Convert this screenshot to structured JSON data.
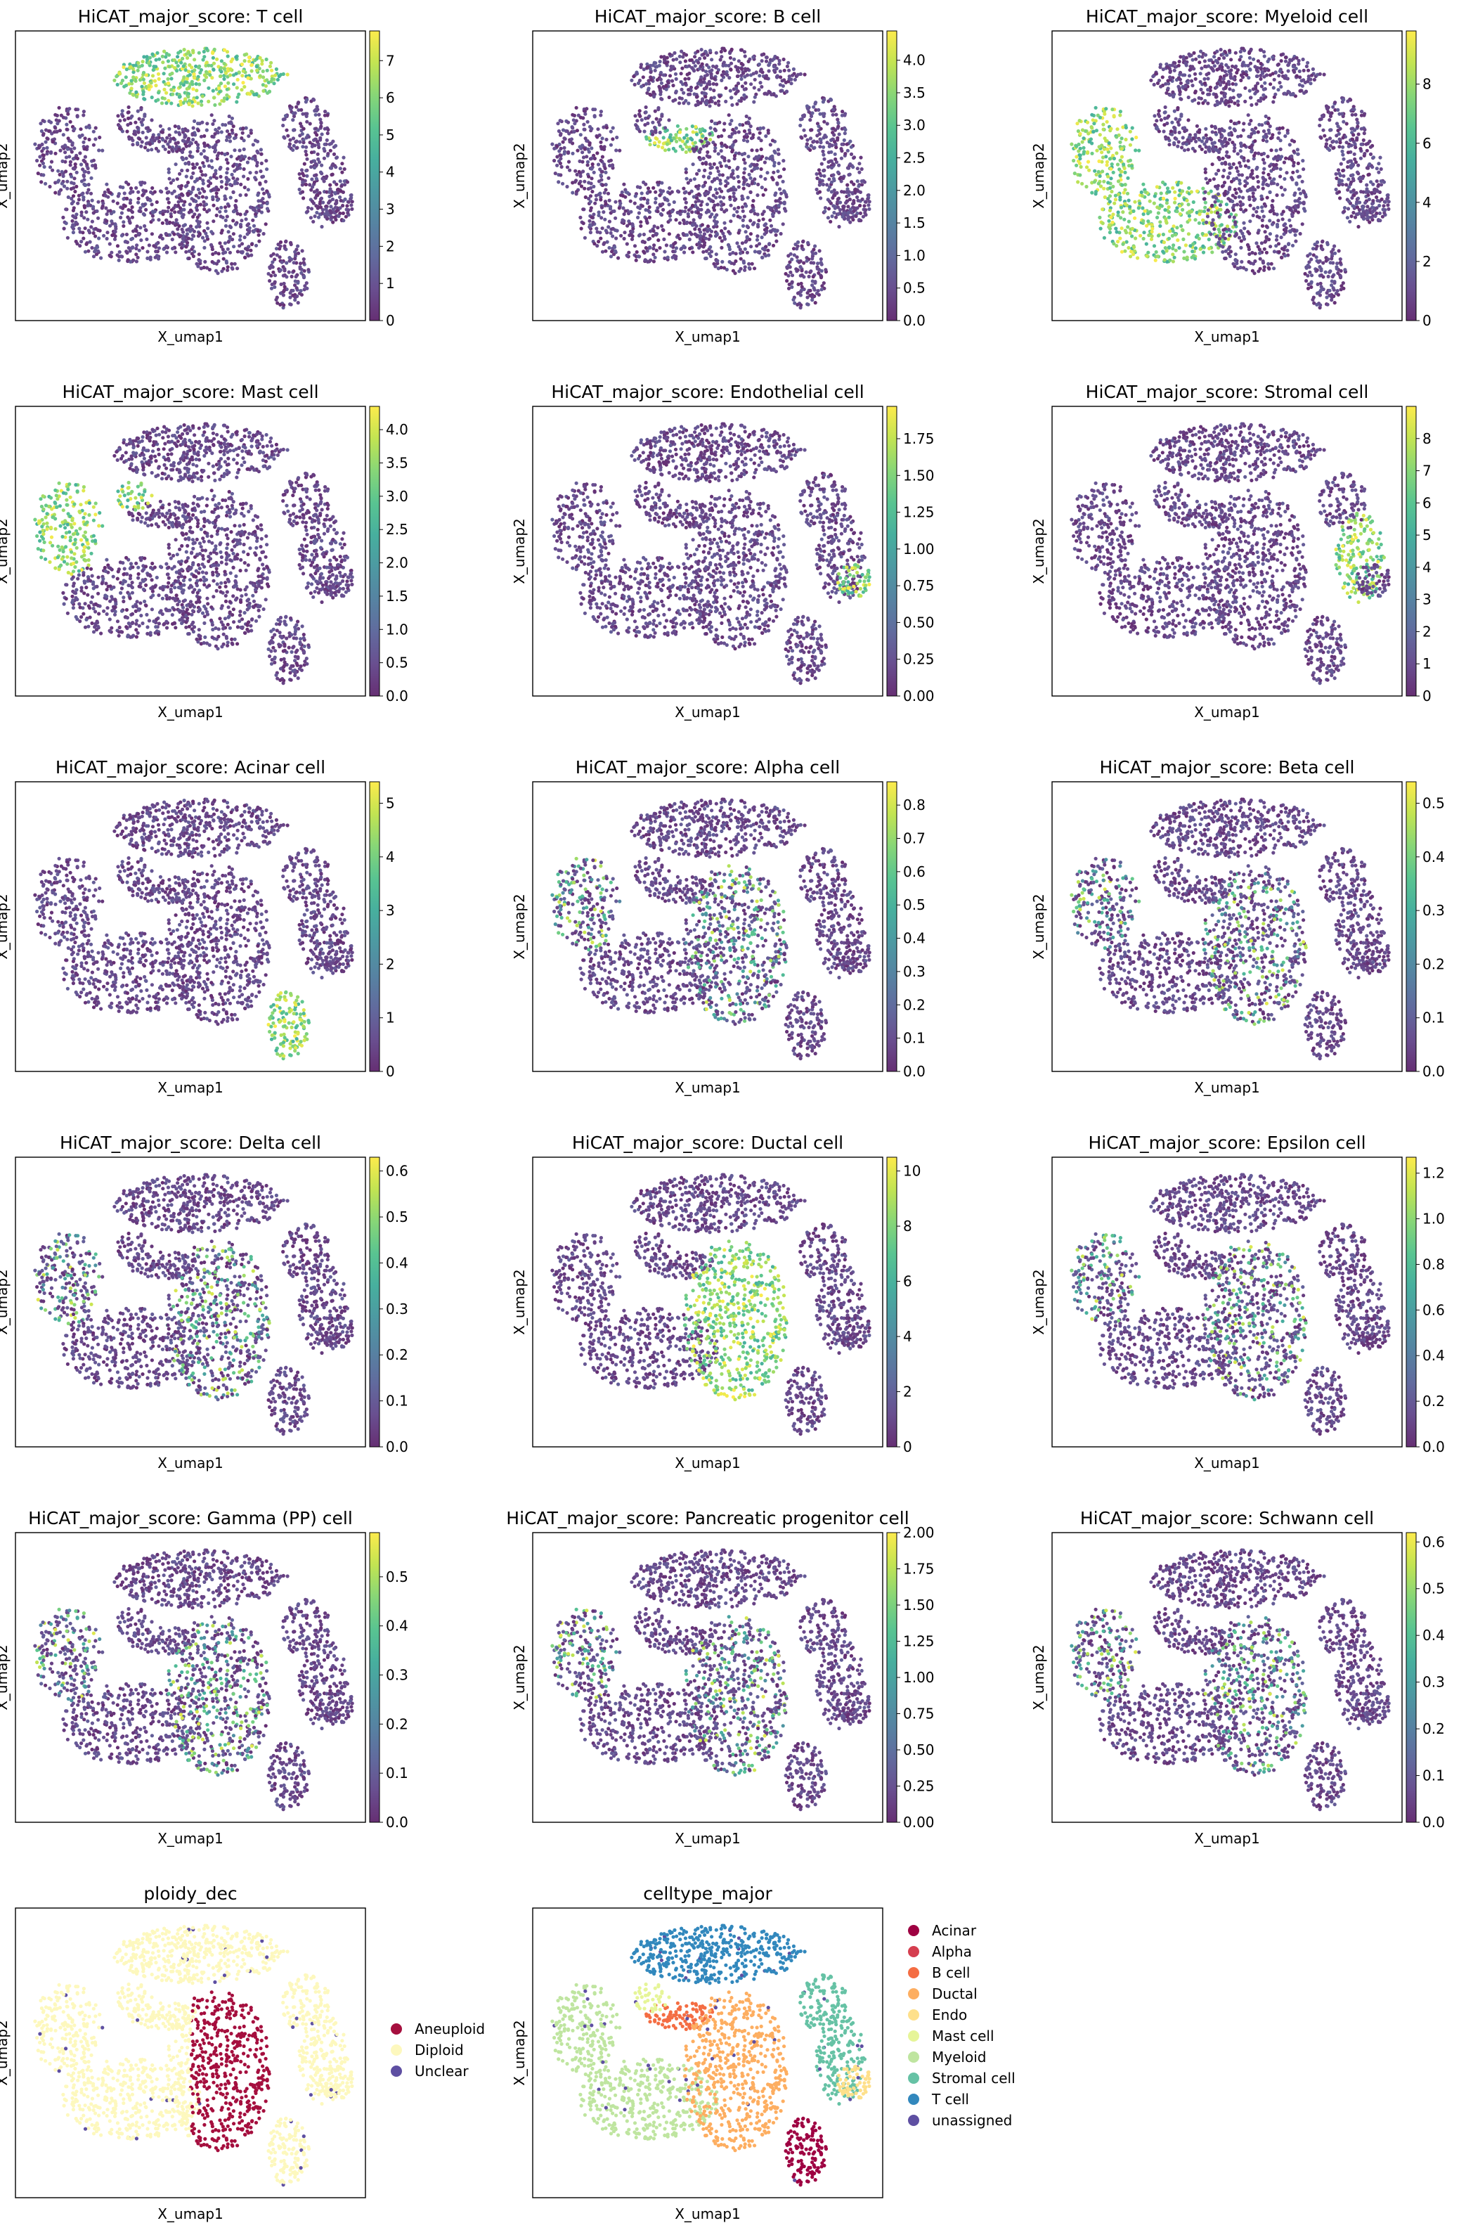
{
  "chart_data": [
    {
      "type": "scatter",
      "title": "HiCAT_major_score: T cell",
      "xlabel": "X_umap1",
      "ylabel": "X_umap2",
      "colormap": "viridis",
      "colorbar": {
        "range": [
          0,
          7.8
        ],
        "ticks": [
          "0",
          "1",
          "2",
          "3",
          "4",
          "5",
          "6",
          "7"
        ]
      },
      "highlight_clusters": [
        "top-center"
      ]
    },
    {
      "type": "scatter",
      "title": "HiCAT_major_score: B cell",
      "xlabel": "X_umap1",
      "ylabel": "X_umap2",
      "colormap": "viridis",
      "colorbar": {
        "range": [
          0,
          4.45
        ],
        "ticks": [
          "0.0",
          "0.5",
          "1.0",
          "1.5",
          "2.0",
          "2.5",
          "3.0",
          "3.5",
          "4.0"
        ]
      },
      "highlight_clusters": [
        "small-upper-middle"
      ]
    },
    {
      "type": "scatter",
      "title": "HiCAT_major_score: Myeloid cell",
      "xlabel": "X_umap1",
      "ylabel": "X_umap2",
      "colormap": "viridis",
      "colorbar": {
        "range": [
          0,
          9.8
        ],
        "ticks": [
          "0",
          "2",
          "4",
          "6",
          "8"
        ]
      },
      "highlight_clusters": [
        "left",
        "lower-left"
      ]
    },
    {
      "type": "scatter",
      "title": "HiCAT_major_score: Mast cell",
      "xlabel": "X_umap1",
      "ylabel": "X_umap2",
      "colormap": "viridis",
      "colorbar": {
        "range": [
          0,
          4.35
        ],
        "ticks": [
          "0.0",
          "0.5",
          "1.0",
          "1.5",
          "2.0",
          "2.5",
          "3.0",
          "3.5",
          "4.0"
        ]
      },
      "highlight_clusters": [
        "small-left-top",
        "left"
      ]
    },
    {
      "type": "scatter",
      "title": "HiCAT_major_score: Endothelial cell",
      "xlabel": "X_umap1",
      "ylabel": "X_umap2",
      "colormap": "viridis",
      "colorbar": {
        "range": [
          0,
          1.97
        ],
        "ticks": [
          "0.00",
          "0.25",
          "0.50",
          "0.75",
          "1.00",
          "1.25",
          "1.50",
          "1.75"
        ]
      },
      "highlight_clusters": [
        "right-small"
      ]
    },
    {
      "type": "scatter",
      "title": "HiCAT_major_score: Stromal cell",
      "xlabel": "X_umap1",
      "ylabel": "X_umap2",
      "colormap": "viridis",
      "colorbar": {
        "range": [
          0,
          9
        ],
        "ticks": [
          "0",
          "1",
          "2",
          "3",
          "4",
          "5",
          "6",
          "7",
          "8"
        ]
      },
      "highlight_clusters": [
        "right"
      ]
    },
    {
      "type": "scatter",
      "title": "HiCAT_major_score: Acinar cell",
      "xlabel": "X_umap1",
      "ylabel": "X_umap2",
      "colormap": "viridis",
      "colorbar": {
        "range": [
          0,
          5.4
        ],
        "ticks": [
          "0",
          "1",
          "2",
          "3",
          "4",
          "5"
        ]
      },
      "highlight_clusters": [
        "lower-right"
      ]
    },
    {
      "type": "scatter",
      "title": "HiCAT_major_score: Alpha cell",
      "xlabel": "X_umap1",
      "ylabel": "X_umap2",
      "colormap": "viridis",
      "colorbar": {
        "range": [
          0,
          0.87
        ],
        "ticks": [
          "0.0",
          "0.1",
          "0.2",
          "0.3",
          "0.4",
          "0.5",
          "0.6",
          "0.7",
          "0.8"
        ]
      },
      "highlight_clusters": [
        "center-speckle"
      ]
    },
    {
      "type": "scatter",
      "title": "HiCAT_major_score: Beta cell",
      "xlabel": "X_umap1",
      "ylabel": "X_umap2",
      "colormap": "viridis",
      "colorbar": {
        "range": [
          0,
          0.54
        ],
        "ticks": [
          "0.0",
          "0.1",
          "0.2",
          "0.3",
          "0.4",
          "0.5"
        ]
      },
      "highlight_clusters": [
        "center-speckle"
      ]
    },
    {
      "type": "scatter",
      "title": "HiCAT_major_score: Delta cell",
      "xlabel": "X_umap1",
      "ylabel": "X_umap2",
      "colormap": "viridis",
      "colorbar": {
        "range": [
          0,
          0.63
        ],
        "ticks": [
          "0.0",
          "0.1",
          "0.2",
          "0.3",
          "0.4",
          "0.5",
          "0.6"
        ]
      },
      "highlight_clusters": [
        "center-speckle"
      ]
    },
    {
      "type": "scatter",
      "title": "HiCAT_major_score: Ductal cell",
      "xlabel": "X_umap1",
      "ylabel": "X_umap2",
      "colormap": "viridis",
      "colorbar": {
        "range": [
          0,
          10.5
        ],
        "ticks": [
          "0",
          "2",
          "4",
          "6",
          "8",
          "10"
        ]
      },
      "highlight_clusters": [
        "center"
      ]
    },
    {
      "type": "scatter",
      "title": "HiCAT_major_score: Epsilon cell",
      "xlabel": "X_umap1",
      "ylabel": "X_umap2",
      "colormap": "viridis",
      "colorbar": {
        "range": [
          0,
          1.27
        ],
        "ticks": [
          "0.0",
          "0.2",
          "0.4",
          "0.6",
          "0.8",
          "1.0",
          "1.2"
        ]
      },
      "highlight_clusters": [
        "center-speckle"
      ]
    },
    {
      "type": "scatter",
      "title": "HiCAT_major_score: Gamma (PP) cell",
      "xlabel": "X_umap1",
      "ylabel": "X_umap2",
      "colormap": "viridis",
      "colorbar": {
        "range": [
          0,
          0.59
        ],
        "ticks": [
          "0.0",
          "0.1",
          "0.2",
          "0.3",
          "0.4",
          "0.5"
        ]
      },
      "highlight_clusters": [
        "center-speckle"
      ]
    },
    {
      "type": "scatter",
      "title": "HiCAT_major_score: Pancreatic progenitor cell",
      "xlabel": "X_umap1",
      "ylabel": "X_umap2",
      "colormap": "viridis",
      "colorbar": {
        "range": [
          0,
          2.0
        ],
        "ticks": [
          "0.00",
          "0.25",
          "0.50",
          "0.75",
          "1.00",
          "1.25",
          "1.50",
          "1.75",
          "2.00"
        ]
      },
      "highlight_clusters": [
        "center-speckle"
      ]
    },
    {
      "type": "scatter",
      "title": "HiCAT_major_score: Schwann cell",
      "xlabel": "X_umap1",
      "ylabel": "X_umap2",
      "colormap": "viridis",
      "colorbar": {
        "range": [
          0,
          0.62
        ],
        "ticks": [
          "0.0",
          "0.1",
          "0.2",
          "0.3",
          "0.4",
          "0.5",
          "0.6"
        ]
      },
      "highlight_clusters": [
        "center-speckle"
      ]
    },
    {
      "type": "scatter",
      "title": "ploidy_dec",
      "xlabel": "X_umap1",
      "ylabel": "X_umap2",
      "legend": [
        {
          "label": "Aneuploid",
          "color": "#a50f3e"
        },
        {
          "label": "Diploid",
          "color": "#fdf8be"
        },
        {
          "label": "Unclear",
          "color": "#5e4fa2"
        }
      ]
    },
    {
      "type": "scatter",
      "title": "celltype_major",
      "xlabel": "X_umap1",
      "ylabel": "X_umap2",
      "legend": [
        {
          "label": "Acinar",
          "color": "#9e0142"
        },
        {
          "label": "Alpha",
          "color": "#d53e4f"
        },
        {
          "label": "B cell",
          "color": "#f46d43"
        },
        {
          "label": "Ductal",
          "color": "#fdae61"
        },
        {
          "label": "Endo",
          "color": "#fee08b"
        },
        {
          "label": "Mast cell",
          "color": "#e6f598"
        },
        {
          "label": "Myeloid",
          "color": "#bfe5a0"
        },
        {
          "label": "Stromal cell",
          "color": "#66c2a5"
        },
        {
          "label": "T cell",
          "color": "#3288bd"
        },
        {
          "label": "unassigned",
          "color": "#5e4fa2"
        }
      ]
    }
  ]
}
